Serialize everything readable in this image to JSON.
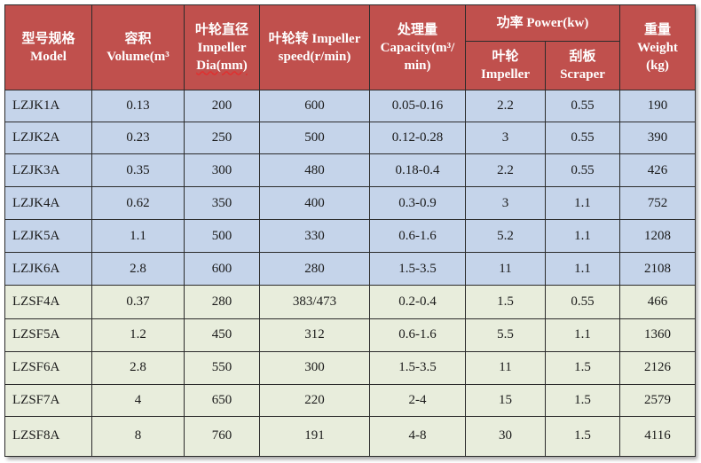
{
  "table": {
    "headers": {
      "model": [
        "型号规格",
        "Model"
      ],
      "volume": [
        "容积",
        "Volume(m³"
      ],
      "impeller_dia": [
        "叶轮直径",
        "Impeller",
        "Dia(mm)"
      ],
      "impeller_speed": [
        "叶轮转 Impeller",
        "speed(r/min)"
      ],
      "capacity": [
        "处理量",
        "Capacity(m³/",
        "min)"
      ],
      "power": "功率 Power(kw)",
      "power_impeller": [
        "叶轮",
        "Impeller"
      ],
      "power_scraper": [
        "刮板",
        "Scraper"
      ],
      "weight": [
        "重量",
        "Weight",
        "(kg)"
      ]
    },
    "rows": [
      {
        "group": "blue",
        "cells": [
          "LZJK1A",
          "0.13",
          "200",
          "600",
          "0.05-0.16",
          "2.2",
          "0.55",
          "190"
        ]
      },
      {
        "group": "blue",
        "cells": [
          "LZJK2A",
          "0.23",
          "250",
          "500",
          "0.12-0.28",
          "3",
          "0.55",
          "390"
        ]
      },
      {
        "group": "blue",
        "cells": [
          "LZJK3A",
          "0.35",
          "300",
          "480",
          "0.18-0.4",
          "2.2",
          "0.55",
          "426"
        ]
      },
      {
        "group": "blue",
        "cells": [
          "LZJK4A",
          "0.62",
          "350",
          "400",
          "0.3-0.9",
          "3",
          "1.1",
          "752"
        ]
      },
      {
        "group": "blue",
        "cells": [
          "LZJK5A",
          "1.1",
          "500",
          "330",
          "0.6-1.6",
          "5.2",
          "1.1",
          "1208"
        ]
      },
      {
        "group": "blue",
        "cells": [
          "LZJK6A",
          "2.8",
          "600",
          "280",
          "1.5-3.5",
          "11",
          "1.1",
          "2108"
        ]
      },
      {
        "group": "green",
        "cells": [
          "LZSF4A",
          "0.37",
          "280",
          "383/473",
          "0.2-0.4",
          "1.5",
          "0.55",
          "466"
        ]
      },
      {
        "group": "green",
        "cells": [
          "LZSF5A",
          "1.2",
          "450",
          "312",
          "0.6-1.6",
          "5.5",
          "1.1",
          "1360"
        ]
      },
      {
        "group": "green",
        "cells": [
          "LZSF6A",
          "2.8",
          "550",
          "300",
          "1.5-3.5",
          "11",
          "1.5",
          "2126"
        ]
      },
      {
        "group": "green",
        "cells": [
          "LZSF7A",
          "4",
          "650",
          "220",
          "2-4",
          "15",
          "1.5",
          "2579"
        ]
      },
      {
        "group": "green",
        "cells": [
          "LZSF8A",
          "8",
          "760",
          "191",
          "4-8",
          "30",
          "1.5",
          "4116"
        ]
      }
    ]
  },
  "colors": {
    "header_bg": "#c0504d",
    "row_blue_bg": "#c5d4ea",
    "row_green_bg": "#e8eddc"
  }
}
